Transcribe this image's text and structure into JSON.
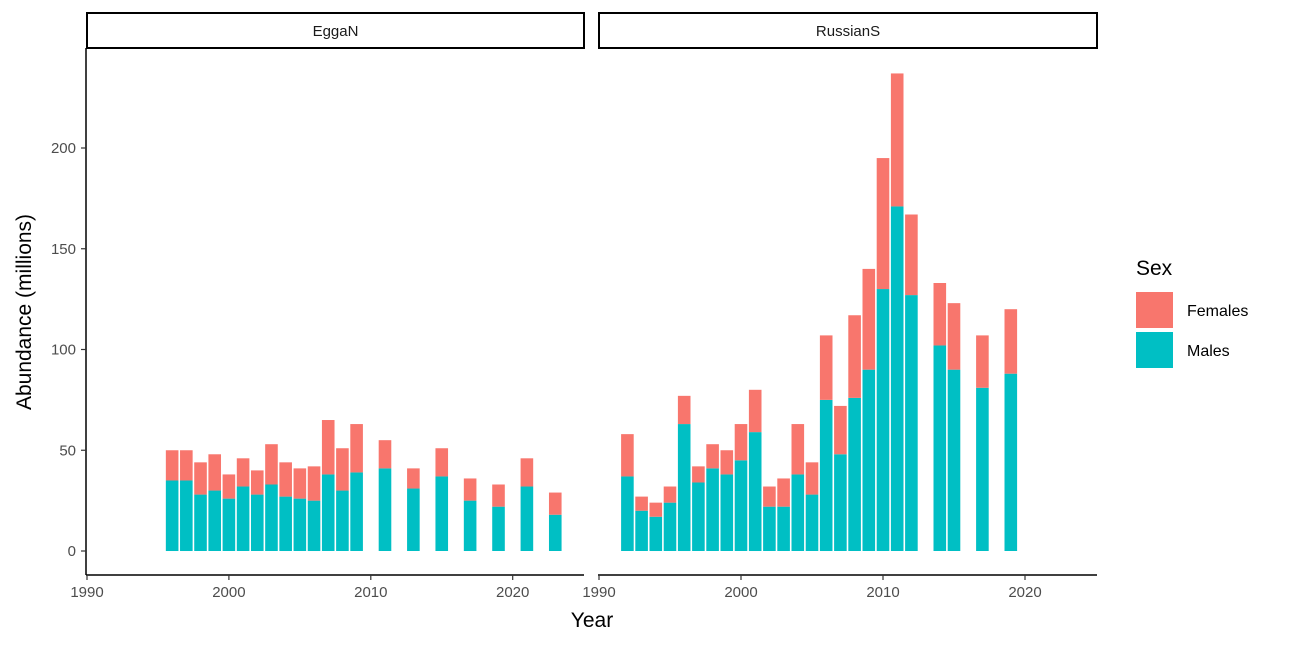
{
  "colors": {
    "females": "#F8766D",
    "males": "#00BFC4"
  },
  "chart_data": {
    "type": "bar",
    "stacked": true,
    "xlabel": "Year",
    "ylabel": "Abundance (millions)",
    "x_ticks": [
      1990,
      2000,
      2010,
      2020
    ],
    "y_ticks": [
      0,
      50,
      100,
      150,
      200
    ],
    "xlim": [
      1990,
      2025
    ],
    "ylim": [
      0,
      240
    ],
    "legend": {
      "title": "Sex",
      "position": "right",
      "entries": [
        {
          "name": "Females",
          "color": "#F8766D"
        },
        {
          "name": "Males",
          "color": "#00BFC4"
        }
      ]
    },
    "panels": [
      {
        "name": "EggaN",
        "years": [
          1996,
          1997,
          1998,
          1999,
          2000,
          2001,
          2002,
          2003,
          2004,
          2005,
          2006,
          2007,
          2008,
          2009,
          2011,
          2013,
          2015,
          2017,
          2019,
          2021,
          2023
        ],
        "males": [
          35,
          35,
          28,
          30,
          26,
          32,
          28,
          33,
          27,
          26,
          25,
          38,
          30,
          39,
          41,
          31,
          37,
          25,
          22,
          32,
          18
        ],
        "females": [
          15,
          15,
          16,
          18,
          12,
          14,
          12,
          20,
          17,
          15,
          17,
          27,
          21,
          24,
          14,
          10,
          14,
          11,
          11,
          14,
          11
        ]
      },
      {
        "name": "RussianS",
        "years": [
          1992,
          1993,
          1994,
          1995,
          1996,
          1997,
          1998,
          1999,
          2000,
          2001,
          2002,
          2003,
          2004,
          2005,
          2006,
          2007,
          2008,
          2009,
          2010,
          2011,
          2012,
          2014,
          2015,
          2017,
          2019
        ],
        "males": [
          37,
          20,
          17,
          24,
          63,
          34,
          41,
          38,
          45,
          59,
          22,
          22,
          38,
          28,
          75,
          48,
          76,
          90,
          130,
          171,
          127,
          102,
          90,
          81,
          88
        ],
        "females": [
          21,
          7,
          7,
          8,
          14,
          8,
          12,
          12,
          18,
          21,
          10,
          14,
          25,
          16,
          32,
          24,
          41,
          50,
          65,
          66,
          40,
          31,
          33,
          26,
          32
        ]
      }
    ]
  }
}
